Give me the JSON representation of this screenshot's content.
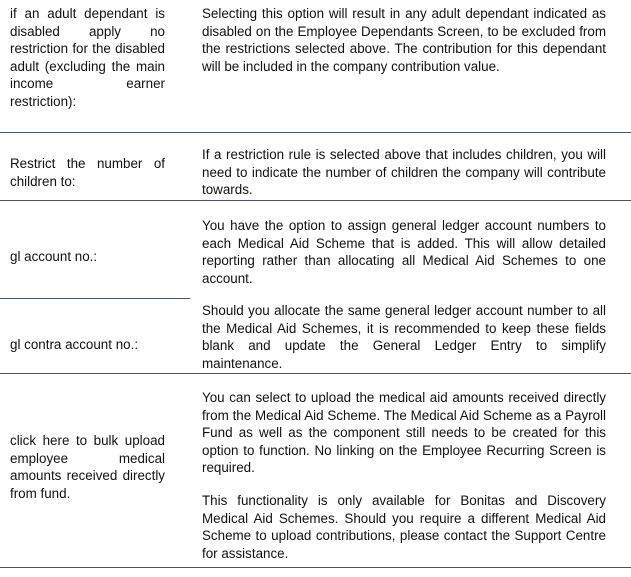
{
  "rows": [
    {
      "label": "if an adult dependant is disabled apply no restriction for the disabled adult (excluding the main income earner restriction):",
      "paragraphs": [
        "Selecting this option will result in any adult dependant indicated as disabled on the Employee Dependants Screen, to be excluded from the restrictions selected above.  The contribution for this dependant will be included in the company contribution value."
      ]
    },
    {
      "label": "Restrict the number of children to:",
      "paragraphs": [
        "If a restriction rule is selected above that includes children, you will need to indicate the number of children the company will contribute towards."
      ]
    },
    {
      "label": "gl account no.:",
      "paragraphs": [
        "You have the option to assign general ledger account numbers to each Medical Aid Scheme that is added. This will allow detailed reporting rather than allocating all Medical Aid Schemes to one account."
      ]
    },
    {
      "label": "gl contra account no.:",
      "paragraphs": [
        "Should you allocate the same general ledger account number to all the Medical Aid Schemes, it is recommended to keep these fields blank and update the General Ledger Entry to simplify maintenance."
      ]
    },
    {
      "label": "click here to bulk upload employee medical amounts received directly from fund.",
      "paragraphs": [
        "You can select to upload the medical aid amounts received directly from the Medical Aid Scheme.  The Medical Aid Scheme as a Payroll Fund as well as the component still needs to be created for this option to function.  No linking on the Employee Recurring Screen is required.",
        "This functionality is only available for Bonitas and Discovery Medical Aid Schemes.  Should you require a different Medical Aid Scheme to upload contributions, please contact the Support Centre for assistance."
      ]
    }
  ],
  "colors": {
    "rule": "#44546a",
    "text": "#111111"
  }
}
